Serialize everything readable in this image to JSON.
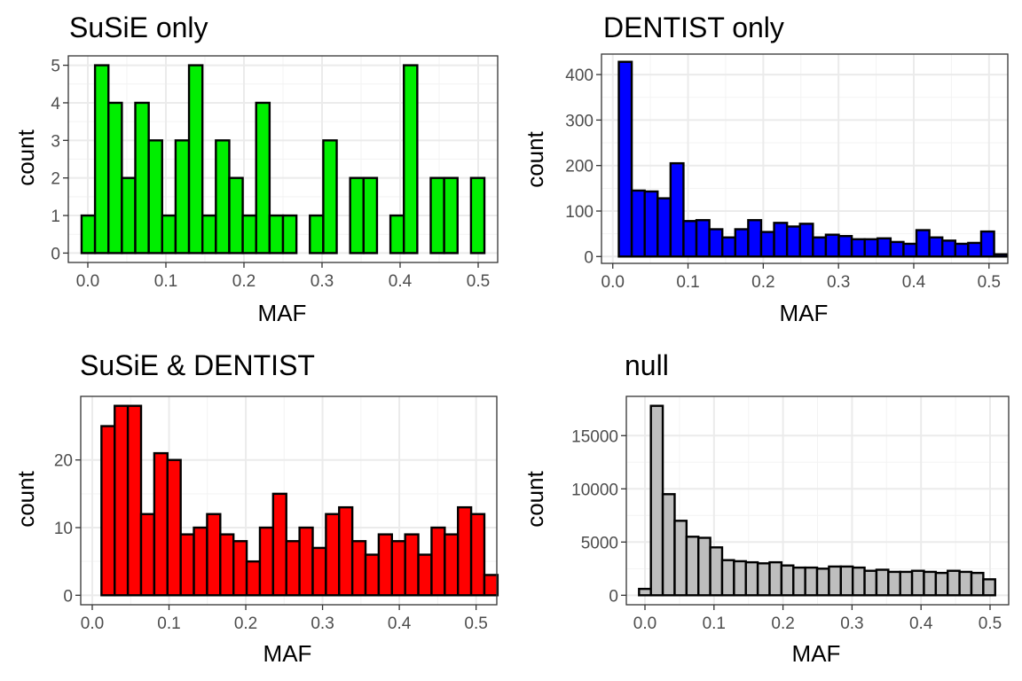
{
  "chart_data": [
    {
      "type": "bar",
      "title": "SuSiE only",
      "xlabel": "MAF",
      "ylabel": "count",
      "fill": "#00ee00",
      "xlim": [
        -0.025,
        0.525
      ],
      "ylim": [
        -0.25,
        5.25
      ],
      "x_ticks": [
        0.0,
        0.1,
        0.2,
        0.3,
        0.4,
        0.5
      ],
      "x_tick_labels": [
        "0.0",
        "0.1",
        "0.2",
        "0.3",
        "0.4",
        "0.5"
      ],
      "y_ticks": [
        0,
        1,
        2,
        3,
        4,
        5
      ],
      "y_tick_labels": [
        "0",
        "1",
        "2",
        "3",
        "4",
        "5"
      ],
      "bin_start": -0.008,
      "bin_width": 0.0172,
      "values": [
        1,
        5,
        4,
        2,
        4,
        3,
        1,
        3,
        5,
        1,
        3,
        2,
        1,
        4,
        1,
        1,
        0,
        1,
        3,
        0,
        2,
        2,
        0,
        1,
        5,
        0,
        2,
        2,
        0,
        2
      ]
    },
    {
      "type": "bar",
      "title": "DENTIST only",
      "xlabel": "MAF",
      "ylabel": "count",
      "fill": "#0000ff",
      "xlim": [
        -0.015,
        0.525
      ],
      "ylim": [
        -15,
        445
      ],
      "x_ticks": [
        0.0,
        0.1,
        0.2,
        0.3,
        0.4,
        0.5
      ],
      "x_tick_labels": [
        "0.0",
        "0.1",
        "0.2",
        "0.3",
        "0.4",
        "0.5"
      ],
      "y_ticks": [
        0,
        100,
        200,
        300,
        400
      ],
      "y_tick_labels": [
        "0",
        "100",
        "200",
        "300",
        "400"
      ],
      "bin_start": 0.008,
      "bin_width": 0.0172,
      "values": [
        428,
        145,
        143,
        128,
        205,
        78,
        80,
        60,
        42,
        60,
        80,
        54,
        74,
        66,
        72,
        42,
        48,
        45,
        38,
        38,
        40,
        32,
        28,
        58,
        42,
        35,
        28,
        30,
        55,
        5
      ]
    },
    {
      "type": "bar",
      "title": "SuSiE & DENTIST",
      "xlabel": "MAF",
      "ylabel": "count",
      "fill": "#ff0000",
      "xlim": [
        -0.015,
        0.527
      ],
      "ylim": [
        -1.4,
        29.4
      ],
      "x_ticks": [
        0.0,
        0.1,
        0.2,
        0.3,
        0.4,
        0.5
      ],
      "x_tick_labels": [
        "0.0",
        "0.1",
        "0.2",
        "0.3",
        "0.4",
        "0.5"
      ],
      "y_ticks": [
        0,
        10,
        20
      ],
      "y_tick_labels": [
        "0",
        "10",
        "20"
      ],
      "bin_start": 0.012,
      "bin_width": 0.0172,
      "values": [
        25,
        28,
        28,
        12,
        21,
        20,
        9,
        10,
        12,
        9,
        8,
        5,
        10,
        15,
        8,
        10,
        7,
        12,
        13,
        8,
        6,
        9,
        8,
        9,
        6,
        10,
        9,
        13,
        12,
        3
      ]
    },
    {
      "type": "bar",
      "title": "null",
      "xlabel": "MAF",
      "ylabel": "count",
      "fill": "#bebebe",
      "xlim": [
        -0.027,
        0.527
      ],
      "ylim": [
        -890,
        18690
      ],
      "x_ticks": [
        0.0,
        0.1,
        0.2,
        0.3,
        0.4,
        0.5
      ],
      "x_tick_labels": [
        "0.0",
        "0.1",
        "0.2",
        "0.3",
        "0.4",
        "0.5"
      ],
      "y_ticks": [
        0,
        5000,
        10000,
        15000
      ],
      "y_tick_labels": [
        "0",
        "5000",
        "10000",
        "15000"
      ],
      "bin_start": -0.0086,
      "bin_width": 0.0172,
      "values": [
        600,
        17800,
        9500,
        7000,
        5500,
        5400,
        4500,
        3300,
        3200,
        3100,
        3000,
        3100,
        2800,
        2600,
        2600,
        2500,
        2700,
        2700,
        2600,
        2300,
        2400,
        2200,
        2200,
        2300,
        2200,
        2100,
        2300,
        2200,
        2100,
        1500
      ]
    }
  ]
}
